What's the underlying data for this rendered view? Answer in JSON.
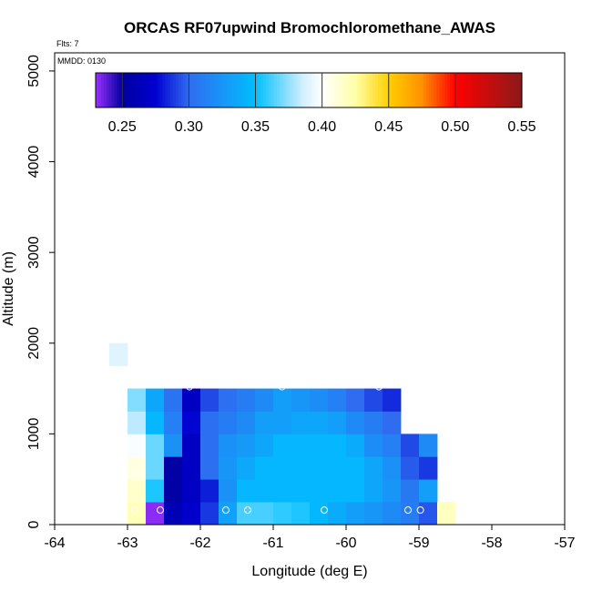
{
  "chart_data": {
    "type": "heatmap",
    "title": "ORCAS RF07upwind Bromochloromethane_AWAS",
    "xlabel": "Longitude (deg E)",
    "ylabel": "Altitude (m)",
    "xlim": [
      -64,
      -57
    ],
    "ylim": [
      0,
      5200
    ],
    "xticks": [
      -64,
      -63,
      -62,
      -61,
      -60,
      -59,
      -58,
      -57
    ],
    "yticks": [
      0,
      1000,
      2000,
      3000,
      4000,
      5000
    ],
    "flights_note": "Flts: 7",
    "date_note": "MMDD: 0130",
    "colorbar": {
      "range": [
        0.23,
        0.55
      ],
      "ticks": [
        0.25,
        0.3,
        0.35,
        0.4,
        0.45,
        0.5,
        0.55
      ],
      "tick_labels": [
        "0.25",
        "0.30",
        "0.35",
        "0.40",
        "0.45",
        "0.50",
        "0.55"
      ],
      "stops": [
        [
          0.23,
          "#9b30ff"
        ],
        [
          0.25,
          "#0000a0"
        ],
        [
          0.275,
          "#0000d0"
        ],
        [
          0.3,
          "#2f6cf0"
        ],
        [
          0.35,
          "#00bfff"
        ],
        [
          0.385,
          "#cfeefe"
        ],
        [
          0.4,
          "#ffffff"
        ],
        [
          0.425,
          "#ffffa8"
        ],
        [
          0.45,
          "#ffd000"
        ],
        [
          0.475,
          "#ff9000"
        ],
        [
          0.5,
          "#ff0000"
        ],
        [
          0.55,
          "#8b1a1a"
        ]
      ]
    },
    "grid": {
      "x_start": -63.25,
      "dx": 0.25,
      "y_start": 0,
      "dy": 250
    },
    "cells": [
      {
        "lon": -63.25,
        "rows": [
          [
            7,
            0.39
          ]
        ]
      },
      {
        "lon": -63.0,
        "rows": [
          [
            0,
            0.42
          ],
          [
            1,
            0.415
          ],
          [
            2,
            0.408
          ],
          [
            3,
            0.398
          ],
          [
            4,
            0.382
          ],
          [
            5,
            0.372
          ]
        ]
      },
      {
        "lon": -62.75,
        "rows": [
          [
            0,
            0.232
          ],
          [
            1,
            0.355
          ],
          [
            2,
            0.368
          ],
          [
            3,
            0.368
          ],
          [
            4,
            0.345
          ],
          [
            5,
            0.335
          ]
        ]
      },
      {
        "lon": -62.5,
        "rows": [
          [
            0,
            0.262
          ],
          [
            1,
            0.252
          ],
          [
            2,
            0.252
          ],
          [
            3,
            0.322
          ],
          [
            4,
            0.312
          ],
          [
            5,
            0.305
          ]
        ]
      },
      {
        "lon": -62.25,
        "rows": [
          [
            0,
            0.272
          ],
          [
            1,
            0.268
          ],
          [
            2,
            0.268
          ],
          [
            3,
            0.268
          ],
          [
            4,
            0.276
          ],
          [
            5,
            0.268
          ]
        ]
      },
      {
        "lon": -62.0,
        "rows": [
          [
            0,
            0.288
          ],
          [
            1,
            0.282
          ],
          [
            2,
            0.302
          ],
          [
            3,
            0.302
          ],
          [
            4,
            0.302
          ],
          [
            5,
            0.292
          ]
        ]
      },
      {
        "lon": -61.75,
        "rows": [
          [
            0,
            0.332
          ],
          [
            1,
            0.322
          ],
          [
            2,
            0.325
          ],
          [
            3,
            0.322
          ],
          [
            4,
            0.31
          ],
          [
            5,
            0.302
          ]
        ]
      },
      {
        "lon": -61.5,
        "rows": [
          [
            0,
            0.362
          ],
          [
            1,
            0.345
          ],
          [
            2,
            0.336
          ],
          [
            3,
            0.328
          ],
          [
            4,
            0.318
          ],
          [
            5,
            0.31
          ]
        ]
      },
      {
        "lon": -61.25,
        "rows": [
          [
            0,
            0.362
          ],
          [
            1,
            0.345
          ],
          [
            2,
            0.345
          ],
          [
            3,
            0.335
          ],
          [
            4,
            0.33
          ],
          [
            5,
            0.318
          ]
        ]
      },
      {
        "lon": -61.0,
        "rows": [
          [
            0,
            0.358
          ],
          [
            1,
            0.345
          ],
          [
            2,
            0.345
          ],
          [
            3,
            0.345
          ],
          [
            4,
            0.33
          ],
          [
            5,
            0.33
          ]
        ]
      },
      {
        "lon": -60.75,
        "rows": [
          [
            0,
            0.355
          ],
          [
            1,
            0.345
          ],
          [
            2,
            0.345
          ],
          [
            3,
            0.345
          ],
          [
            4,
            0.335
          ],
          [
            5,
            0.325
          ]
        ]
      },
      {
        "lon": -60.5,
        "rows": [
          [
            0,
            0.345
          ],
          [
            1,
            0.345
          ],
          [
            2,
            0.345
          ],
          [
            3,
            0.345
          ],
          [
            4,
            0.335
          ],
          [
            5,
            0.32
          ]
        ]
      },
      {
        "lon": -60.25,
        "rows": [
          [
            0,
            0.338
          ],
          [
            1,
            0.345
          ],
          [
            2,
            0.345
          ],
          [
            3,
            0.345
          ],
          [
            4,
            0.33
          ],
          [
            5,
            0.312
          ]
        ]
      },
      {
        "lon": -60.0,
        "rows": [
          [
            0,
            0.33
          ],
          [
            1,
            0.345
          ],
          [
            2,
            0.345
          ],
          [
            3,
            0.338
          ],
          [
            4,
            0.318
          ],
          [
            5,
            0.3
          ]
        ]
      },
      {
        "lon": -59.75,
        "rows": [
          [
            0,
            0.325
          ],
          [
            1,
            0.335
          ],
          [
            2,
            0.335
          ],
          [
            3,
            0.32
          ],
          [
            4,
            0.31
          ],
          [
            5,
            0.292
          ]
        ]
      },
      {
        "lon": -59.5,
        "rows": [
          [
            0,
            0.318
          ],
          [
            1,
            0.325
          ],
          [
            2,
            0.322
          ],
          [
            3,
            0.312
          ],
          [
            4,
            0.3
          ],
          [
            5,
            0.285
          ]
        ]
      },
      {
        "lon": -59.25,
        "rows": [
          [
            0,
            0.31
          ],
          [
            1,
            0.308
          ],
          [
            2,
            0.296
          ],
          [
            3,
            0.292
          ]
        ]
      },
      {
        "lon": -59.0,
        "rows": [
          [
            0,
            0.295
          ],
          [
            1,
            0.33
          ],
          [
            2,
            0.288
          ],
          [
            3,
            0.318
          ]
        ]
      },
      {
        "lon": -58.75,
        "rows": [
          [
            0,
            0.418
          ]
        ]
      }
    ],
    "sample_points": [
      {
        "lon": -62.9,
        "alt": 160
      },
      {
        "lon": -62.55,
        "alt": 160
      },
      {
        "lon": -61.65,
        "alt": 160
      },
      {
        "lon": -61.35,
        "alt": 160
      },
      {
        "lon": -60.3,
        "alt": 160
      },
      {
        "lon": -59.15,
        "alt": 160
      },
      {
        "lon": -58.98,
        "alt": 160
      },
      {
        "lon": -62.15,
        "alt": 1520
      },
      {
        "lon": -60.88,
        "alt": 1520
      },
      {
        "lon": -59.55,
        "alt": 1520
      }
    ]
  }
}
